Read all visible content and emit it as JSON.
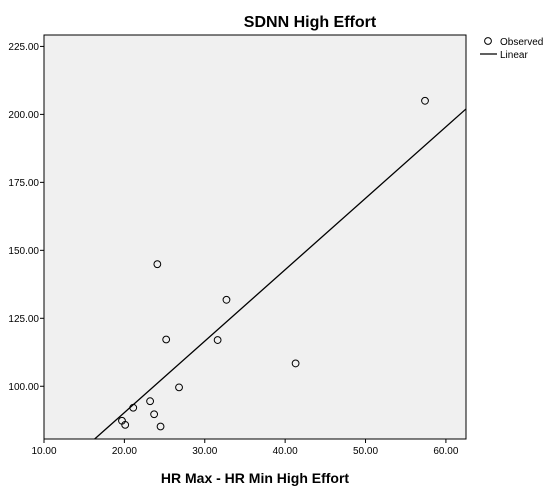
{
  "chart_data": {
    "type": "scatter",
    "title": "SDNN High Effort",
    "xlabel": "HR Max - HR Min High Effort",
    "ylabel": "",
    "xlim": [
      10,
      62.5
    ],
    "ylim": [
      80.6,
      229.2
    ],
    "x_ticks": [
      10,
      20,
      30,
      40,
      50,
      60
    ],
    "x_tick_labels": [
      "10.00",
      "20.00",
      "30.00",
      "40.00",
      "50.00",
      "60.00"
    ],
    "y_ticks": [
      100,
      125,
      150,
      175,
      200,
      225
    ],
    "y_tick_labels": [
      "100.00",
      "125.00",
      "150.00",
      "175.00",
      "200.00",
      "225.00"
    ],
    "grid": false,
    "legend_position": "top-right (outside plot)",
    "background_color": "#f0f0f0",
    "mark_color": "#000000",
    "series": [
      {
        "name": "Observed",
        "marker": "open-circle",
        "points": [
          {
            "x": 19.7,
            "y": 87.3
          },
          {
            "x": 20.1,
            "y": 85.8
          },
          {
            "x": 21.1,
            "y": 92.1
          },
          {
            "x": 23.2,
            "y": 94.5
          },
          {
            "x": 23.7,
            "y": 89.7
          },
          {
            "x": 24.1,
            "y": 144.9
          },
          {
            "x": 24.5,
            "y": 85.2
          },
          {
            "x": 25.2,
            "y": 117.2
          },
          {
            "x": 26.8,
            "y": 99.6
          },
          {
            "x": 31.6,
            "y": 117.0
          },
          {
            "x": 32.7,
            "y": 131.8
          },
          {
            "x": 41.3,
            "y": 108.4
          },
          {
            "x": 57.4,
            "y": 205.0
          }
        ]
      },
      {
        "name": "Linear",
        "marker": "line",
        "line": [
          {
            "x": 16.3,
            "y": 80.6
          },
          {
            "x": 62.5,
            "y": 202.0
          }
        ]
      }
    ]
  }
}
